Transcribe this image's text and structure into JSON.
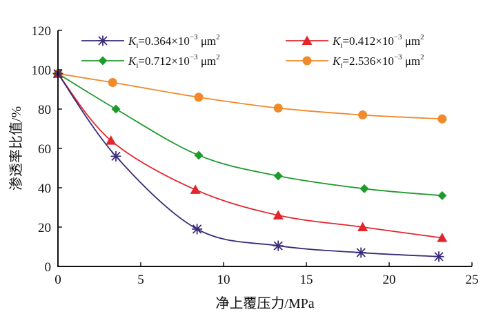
{
  "chart_data": {
    "type": "line",
    "xlabel": "净上覆压力/MPa",
    "ylabel": "渗透率比值/%",
    "xlim": [
      0,
      25
    ],
    "ylim": [
      0,
      120
    ],
    "xticks": [
      0,
      5,
      10,
      15,
      20,
      25
    ],
    "yticks": [
      0,
      20,
      40,
      60,
      80,
      100,
      120
    ],
    "grid": false,
    "legend_position": "top",
    "series": [
      {
        "name": "Ki=0.364×10−3 μm2",
        "label_value": "0.364",
        "marker": "asterisk",
        "color": "#3a2a78",
        "x": [
          0,
          3.5,
          8.4,
          13.3,
          18.3,
          23.0
        ],
        "y": [
          98,
          56,
          19,
          10.5,
          7,
          5
        ]
      },
      {
        "name": "Ki=0.412×10−3 μm2",
        "label_value": "0.412",
        "marker": "triangle",
        "color": "#e3262b",
        "x": [
          0,
          3.2,
          8.3,
          13.3,
          18.4,
          23.2
        ],
        "y": [
          98,
          64,
          39,
          26,
          20,
          14.5
        ]
      },
      {
        "name": "Ki=0.712×10−3 μm2",
        "label_value": "0.712",
        "marker": "diamond",
        "color": "#1f9a2c",
        "x": [
          0,
          3.5,
          8.5,
          13.3,
          18.5,
          23.2
        ],
        "y": [
          98,
          80,
          56.5,
          46,
          39.5,
          36
        ]
      },
      {
        "name": "Ki=2.536×10−3 μm2",
        "label_value": "2.536",
        "marker": "circle",
        "color": "#f08a2a",
        "x": [
          0,
          3.3,
          8.5,
          13.3,
          18.4,
          23.2
        ],
        "y": [
          98,
          93.5,
          86,
          80.5,
          77,
          75
        ]
      }
    ]
  },
  "legend": {
    "k": "K",
    "sub": "i",
    "eq": "=",
    "unit_mid": "×10",
    "exp": "−3",
    "unit_end": " μm",
    "pow": "2"
  }
}
